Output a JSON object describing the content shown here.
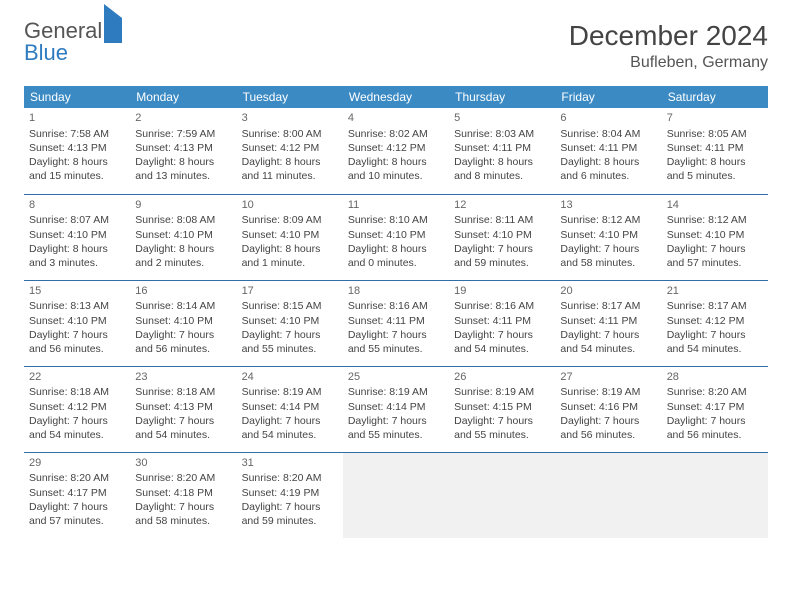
{
  "logo": {
    "word1": "General",
    "word2": "Blue"
  },
  "header": {
    "month": "December 2024",
    "location": "Bufleben, Germany"
  },
  "colors": {
    "header_bg": "#3b8ac4",
    "row_border": "#2f6fa6",
    "empty_bg": "#f1f1f1",
    "logo_accent": "#2f7bbf"
  },
  "weekdays": [
    "Sunday",
    "Monday",
    "Tuesday",
    "Wednesday",
    "Thursday",
    "Friday",
    "Saturday"
  ],
  "weeks": [
    [
      {
        "day": "1",
        "sunrise": "Sunrise: 7:58 AM",
        "sunset": "Sunset: 4:13 PM",
        "daylight1": "Daylight: 8 hours",
        "daylight2": "and 15 minutes."
      },
      {
        "day": "2",
        "sunrise": "Sunrise: 7:59 AM",
        "sunset": "Sunset: 4:13 PM",
        "daylight1": "Daylight: 8 hours",
        "daylight2": "and 13 minutes."
      },
      {
        "day": "3",
        "sunrise": "Sunrise: 8:00 AM",
        "sunset": "Sunset: 4:12 PM",
        "daylight1": "Daylight: 8 hours",
        "daylight2": "and 11 minutes."
      },
      {
        "day": "4",
        "sunrise": "Sunrise: 8:02 AM",
        "sunset": "Sunset: 4:12 PM",
        "daylight1": "Daylight: 8 hours",
        "daylight2": "and 10 minutes."
      },
      {
        "day": "5",
        "sunrise": "Sunrise: 8:03 AM",
        "sunset": "Sunset: 4:11 PM",
        "daylight1": "Daylight: 8 hours",
        "daylight2": "and 8 minutes."
      },
      {
        "day": "6",
        "sunrise": "Sunrise: 8:04 AM",
        "sunset": "Sunset: 4:11 PM",
        "daylight1": "Daylight: 8 hours",
        "daylight2": "and 6 minutes."
      },
      {
        "day": "7",
        "sunrise": "Sunrise: 8:05 AM",
        "sunset": "Sunset: 4:11 PM",
        "daylight1": "Daylight: 8 hours",
        "daylight2": "and 5 minutes."
      }
    ],
    [
      {
        "day": "8",
        "sunrise": "Sunrise: 8:07 AM",
        "sunset": "Sunset: 4:10 PM",
        "daylight1": "Daylight: 8 hours",
        "daylight2": "and 3 minutes."
      },
      {
        "day": "9",
        "sunrise": "Sunrise: 8:08 AM",
        "sunset": "Sunset: 4:10 PM",
        "daylight1": "Daylight: 8 hours",
        "daylight2": "and 2 minutes."
      },
      {
        "day": "10",
        "sunrise": "Sunrise: 8:09 AM",
        "sunset": "Sunset: 4:10 PM",
        "daylight1": "Daylight: 8 hours",
        "daylight2": "and 1 minute."
      },
      {
        "day": "11",
        "sunrise": "Sunrise: 8:10 AM",
        "sunset": "Sunset: 4:10 PM",
        "daylight1": "Daylight: 8 hours",
        "daylight2": "and 0 minutes."
      },
      {
        "day": "12",
        "sunrise": "Sunrise: 8:11 AM",
        "sunset": "Sunset: 4:10 PM",
        "daylight1": "Daylight: 7 hours",
        "daylight2": "and 59 minutes."
      },
      {
        "day": "13",
        "sunrise": "Sunrise: 8:12 AM",
        "sunset": "Sunset: 4:10 PM",
        "daylight1": "Daylight: 7 hours",
        "daylight2": "and 58 minutes."
      },
      {
        "day": "14",
        "sunrise": "Sunrise: 8:12 AM",
        "sunset": "Sunset: 4:10 PM",
        "daylight1": "Daylight: 7 hours",
        "daylight2": "and 57 minutes."
      }
    ],
    [
      {
        "day": "15",
        "sunrise": "Sunrise: 8:13 AM",
        "sunset": "Sunset: 4:10 PM",
        "daylight1": "Daylight: 7 hours",
        "daylight2": "and 56 minutes."
      },
      {
        "day": "16",
        "sunrise": "Sunrise: 8:14 AM",
        "sunset": "Sunset: 4:10 PM",
        "daylight1": "Daylight: 7 hours",
        "daylight2": "and 56 minutes."
      },
      {
        "day": "17",
        "sunrise": "Sunrise: 8:15 AM",
        "sunset": "Sunset: 4:10 PM",
        "daylight1": "Daylight: 7 hours",
        "daylight2": "and 55 minutes."
      },
      {
        "day": "18",
        "sunrise": "Sunrise: 8:16 AM",
        "sunset": "Sunset: 4:11 PM",
        "daylight1": "Daylight: 7 hours",
        "daylight2": "and 55 minutes."
      },
      {
        "day": "19",
        "sunrise": "Sunrise: 8:16 AM",
        "sunset": "Sunset: 4:11 PM",
        "daylight1": "Daylight: 7 hours",
        "daylight2": "and 54 minutes."
      },
      {
        "day": "20",
        "sunrise": "Sunrise: 8:17 AM",
        "sunset": "Sunset: 4:11 PM",
        "daylight1": "Daylight: 7 hours",
        "daylight2": "and 54 minutes."
      },
      {
        "day": "21",
        "sunrise": "Sunrise: 8:17 AM",
        "sunset": "Sunset: 4:12 PM",
        "daylight1": "Daylight: 7 hours",
        "daylight2": "and 54 minutes."
      }
    ],
    [
      {
        "day": "22",
        "sunrise": "Sunrise: 8:18 AM",
        "sunset": "Sunset: 4:12 PM",
        "daylight1": "Daylight: 7 hours",
        "daylight2": "and 54 minutes."
      },
      {
        "day": "23",
        "sunrise": "Sunrise: 8:18 AM",
        "sunset": "Sunset: 4:13 PM",
        "daylight1": "Daylight: 7 hours",
        "daylight2": "and 54 minutes."
      },
      {
        "day": "24",
        "sunrise": "Sunrise: 8:19 AM",
        "sunset": "Sunset: 4:14 PM",
        "daylight1": "Daylight: 7 hours",
        "daylight2": "and 54 minutes."
      },
      {
        "day": "25",
        "sunrise": "Sunrise: 8:19 AM",
        "sunset": "Sunset: 4:14 PM",
        "daylight1": "Daylight: 7 hours",
        "daylight2": "and 55 minutes."
      },
      {
        "day": "26",
        "sunrise": "Sunrise: 8:19 AM",
        "sunset": "Sunset: 4:15 PM",
        "daylight1": "Daylight: 7 hours",
        "daylight2": "and 55 minutes."
      },
      {
        "day": "27",
        "sunrise": "Sunrise: 8:19 AM",
        "sunset": "Sunset: 4:16 PM",
        "daylight1": "Daylight: 7 hours",
        "daylight2": "and 56 minutes."
      },
      {
        "day": "28",
        "sunrise": "Sunrise: 8:20 AM",
        "sunset": "Sunset: 4:17 PM",
        "daylight1": "Daylight: 7 hours",
        "daylight2": "and 56 minutes."
      }
    ],
    [
      {
        "day": "29",
        "sunrise": "Sunrise: 8:20 AM",
        "sunset": "Sunset: 4:17 PM",
        "daylight1": "Daylight: 7 hours",
        "daylight2": "and 57 minutes."
      },
      {
        "day": "30",
        "sunrise": "Sunrise: 8:20 AM",
        "sunset": "Sunset: 4:18 PM",
        "daylight1": "Daylight: 7 hours",
        "daylight2": "and 58 minutes."
      },
      {
        "day": "31",
        "sunrise": "Sunrise: 8:20 AM",
        "sunset": "Sunset: 4:19 PM",
        "daylight1": "Daylight: 7 hours",
        "daylight2": "and 59 minutes."
      },
      {
        "empty": true
      },
      {
        "empty": true
      },
      {
        "empty": true
      },
      {
        "empty": true
      }
    ]
  ]
}
